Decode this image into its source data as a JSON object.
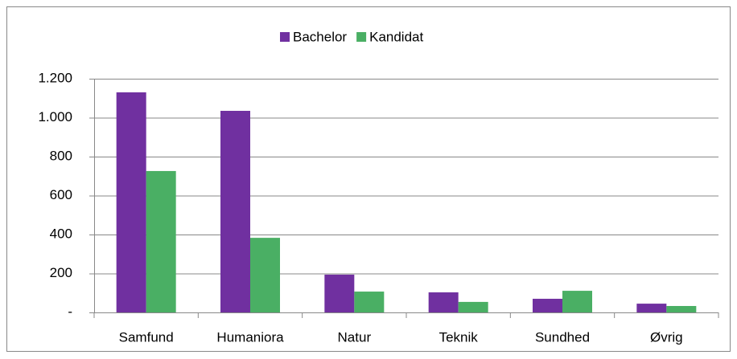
{
  "chart_data": {
    "type": "bar",
    "categories": [
      "Samfund",
      "Humaniora",
      "Natur",
      "Teknik",
      "Sundhed",
      "Øvrig"
    ],
    "series": [
      {
        "name": "Bachelor",
        "color": "#7030a0",
        "values": [
          1130,
          1035,
          194,
          103,
          70,
          45
        ]
      },
      {
        "name": "Kandidat",
        "color": "#4aaf64",
        "values": [
          726,
          383,
          107,
          54,
          111,
          33
        ]
      }
    ],
    "ylim": [
      0,
      1200
    ],
    "yticks": [
      {
        "value": 0,
        "label": "-"
      },
      200,
      400,
      600,
      800,
      {
        "value": 1000,
        "label": "1.000"
      },
      {
        "value": 1200,
        "label": "1.200"
      }
    ],
    "grid": true,
    "legend": "top"
  }
}
